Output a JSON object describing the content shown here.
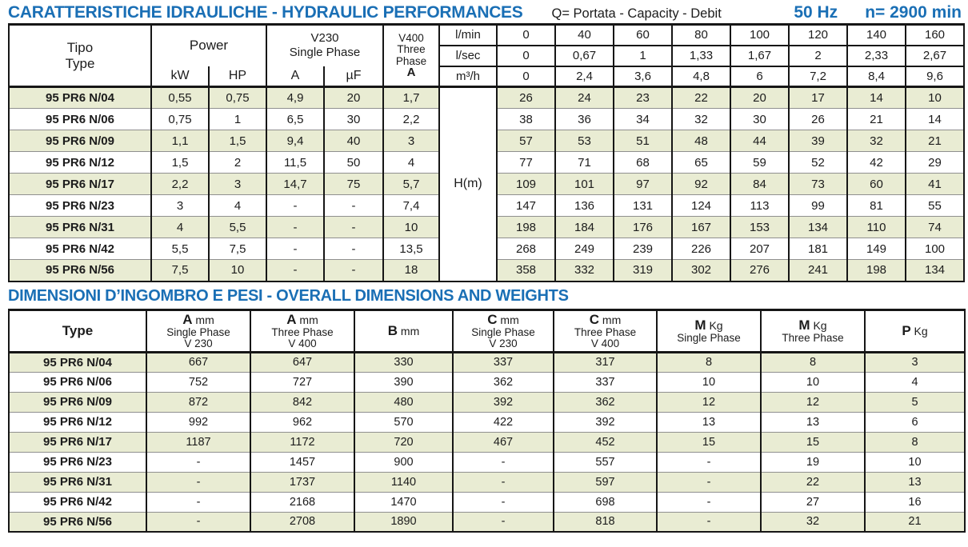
{
  "colors": {
    "accent_blue": "#1a6fb5",
    "row_green": "#e9ecd3",
    "row_white": "#ffffff",
    "border_black": "#161616",
    "row_divider_gray": "#8f8f8f"
  },
  "header1": {
    "title": "CARATTERISTICHE IDRAULICHE - HYDRAULIC PERFORMANCES",
    "subtitle": "Q= Portata - Capacity - Debit",
    "frequency": "50 Hz",
    "speed": "n= 2900 min"
  },
  "hydraulic_table": {
    "col_tipo": [
      "Tipo",
      "Type"
    ],
    "col_power": "Power",
    "col_kw": "kW",
    "col_hp": "HP",
    "col_v230": [
      "V230",
      "Single Phase"
    ],
    "col_a": "A",
    "col_uf": "µF",
    "col_v400": [
      "V400",
      "Three",
      "Phase",
      "A"
    ],
    "flow_units": [
      "l/min",
      "l/sec",
      "m³/h"
    ],
    "flow_lmin": [
      "0",
      "40",
      "60",
      "80",
      "100",
      "120",
      "140",
      "160"
    ],
    "flow_lsec": [
      "0",
      "0,67",
      "1",
      "1,33",
      "1,67",
      "2",
      "2,33",
      "2,67"
    ],
    "flow_m3h": [
      "0",
      "2,4",
      "3,6",
      "4,8",
      "6",
      "7,2",
      "8,4",
      "9,6"
    ],
    "head_label": "H(m)",
    "rows": [
      {
        "type": "95 PR6 N/04",
        "kw": "0,55",
        "hp": "0,75",
        "a": "4,9",
        "uf": "20",
        "a400": "1,7",
        "head": [
          "26",
          "24",
          "23",
          "22",
          "20",
          "17",
          "14",
          "10"
        ]
      },
      {
        "type": "95 PR6 N/06",
        "kw": "0,75",
        "hp": "1",
        "a": "6,5",
        "uf": "30",
        "a400": "2,2",
        "head": [
          "38",
          "36",
          "34",
          "32",
          "30",
          "26",
          "21",
          "14"
        ]
      },
      {
        "type": "95 PR6 N/09",
        "kw": "1,1",
        "hp": "1,5",
        "a": "9,4",
        "uf": "40",
        "a400": "3",
        "head": [
          "57",
          "53",
          "51",
          "48",
          "44",
          "39",
          "32",
          "21"
        ]
      },
      {
        "type": "95 PR6 N/12",
        "kw": "1,5",
        "hp": "2",
        "a": "11,5",
        "uf": "50",
        "a400": "4",
        "head": [
          "77",
          "71",
          "68",
          "65",
          "59",
          "52",
          "42",
          "29"
        ]
      },
      {
        "type": "95 PR6 N/17",
        "kw": "2,2",
        "hp": "3",
        "a": "14,7",
        "uf": "75",
        "a400": "5,7",
        "head": [
          "109",
          "101",
          "97",
          "92",
          "84",
          "73",
          "60",
          "41"
        ]
      },
      {
        "type": "95 PR6 N/23",
        "kw": "3",
        "hp": "4",
        "a": "-",
        "uf": "-",
        "a400": "7,4",
        "head": [
          "147",
          "136",
          "131",
          "124",
          "113",
          "99",
          "81",
          "55"
        ]
      },
      {
        "type": "95 PR6 N/31",
        "kw": "4",
        "hp": "5,5",
        "a": "-",
        "uf": "-",
        "a400": "10",
        "head": [
          "198",
          "184",
          "176",
          "167",
          "153",
          "134",
          "110",
          "74"
        ]
      },
      {
        "type": "95 PR6 N/42",
        "kw": "5,5",
        "hp": "7,5",
        "a": "-",
        "uf": "-",
        "a400": "13,5",
        "head": [
          "268",
          "249",
          "239",
          "226",
          "207",
          "181",
          "149",
          "100"
        ]
      },
      {
        "type": "95 PR6 N/56",
        "kw": "7,5",
        "hp": "10",
        "a": "-",
        "uf": "-",
        "a400": "18",
        "head": [
          "358",
          "332",
          "319",
          "302",
          "276",
          "241",
          "198",
          "134"
        ]
      }
    ]
  },
  "dimensions_table": {
    "title": "DIMENSIONI D’INGOMBRO E PESI - OVERALL DIMENSIONS AND WEIGHTS",
    "headers": [
      {
        "b": "Type",
        "u": "",
        "sub": []
      },
      {
        "b": "A",
        "u": " mm",
        "sub": [
          "Single Phase",
          "V 230"
        ]
      },
      {
        "b": "A",
        "u": " mm",
        "sub": [
          "Three Phase",
          "V 400"
        ]
      },
      {
        "b": "B",
        "u": " mm",
        "sub": []
      },
      {
        "b": "C",
        "u": " mm",
        "sub": [
          "Single Phase",
          "V 230"
        ]
      },
      {
        "b": "C",
        "u": " mm",
        "sub": [
          "Three Phase",
          "V 400"
        ]
      },
      {
        "b": "M",
        "u": " Kg",
        "sub": [
          "Single Phase"
        ]
      },
      {
        "b": "M",
        "u": " Kg",
        "sub": [
          "Three Phase"
        ]
      },
      {
        "b": "P",
        "u": " Kg",
        "sub": []
      }
    ],
    "rows": [
      [
        "95 PR6 N/04",
        "667",
        "647",
        "330",
        "337",
        "317",
        "8",
        "8",
        "3"
      ],
      [
        "95 PR6 N/06",
        "752",
        "727",
        "390",
        "362",
        "337",
        "10",
        "10",
        "4"
      ],
      [
        "95 PR6 N/09",
        "872",
        "842",
        "480",
        "392",
        "362",
        "12",
        "12",
        "5"
      ],
      [
        "95 PR6 N/12",
        "992",
        "962",
        "570",
        "422",
        "392",
        "13",
        "13",
        "6"
      ],
      [
        "95 PR6 N/17",
        "1187",
        "1172",
        "720",
        "467",
        "452",
        "15",
        "15",
        "8"
      ],
      [
        "95 PR6 N/23",
        "-",
        "1457",
        "900",
        "-",
        "557",
        "-",
        "19",
        "10"
      ],
      [
        "95 PR6 N/31",
        "-",
        "1737",
        "1140",
        "-",
        "597",
        "-",
        "22",
        "13"
      ],
      [
        "95 PR6 N/42",
        "-",
        "2168",
        "1470",
        "-",
        "698",
        "-",
        "27",
        "16"
      ],
      [
        "95 PR6 N/56",
        "-",
        "2708",
        "1890",
        "-",
        "818",
        "-",
        "32",
        "21"
      ]
    ]
  }
}
